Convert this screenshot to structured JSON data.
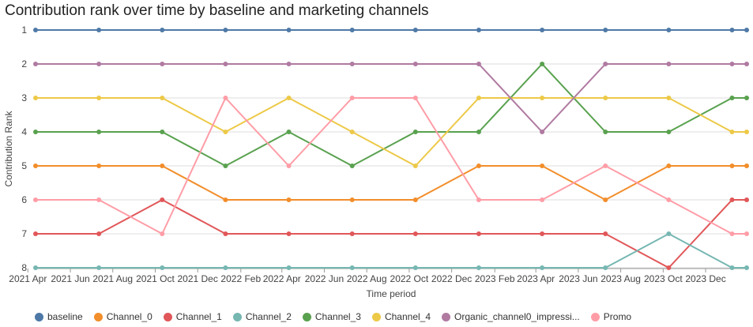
{
  "chart_data": {
    "type": "line",
    "title": "Contribution rank over time by baseline and marketing channels",
    "xlabel": "Time period",
    "ylabel": "Contribution Rank",
    "y_reversed": true,
    "ylim": [
      1,
      8
    ],
    "yticks": [
      "1",
      "2",
      "3",
      "4",
      "5",
      "6",
      "7",
      "8"
    ],
    "grid": true,
    "legend_position": "bottom",
    "xtick_labels": [
      "2021 Apr",
      "2021 Jun",
      "2021 Aug",
      "2021 Oct",
      "2021 Dec",
      "2022 Feb",
      "2022 Apr",
      "2022 Jun",
      "2022 Aug",
      "2022 Oct",
      "2022 Dec",
      "2023 Feb",
      "2023 Apr",
      "2023 Jun",
      "2023 Aug",
      "2023 Oct",
      "2023 Dec"
    ],
    "x": [
      "2021-04-12",
      "2021-07-12",
      "2021-10-11",
      "2022-01-10",
      "2022-04-11",
      "2022-07-11",
      "2022-10-10",
      "2023-01-09",
      "2023-04-10",
      "2023-07-10",
      "2023-10-09",
      "2024-01-08",
      "2024-01-29"
    ],
    "series": [
      {
        "name": "baseline",
        "color": "#4e79a7",
        "values": [
          1,
          1,
          1,
          1,
          1,
          1,
          1,
          1,
          1,
          1,
          1,
          1,
          1
        ]
      },
      {
        "name": "Channel_0",
        "color": "#f28e2b",
        "values": [
          5,
          5,
          5,
          6,
          6,
          6,
          6,
          5,
          5,
          6,
          5,
          5,
          5
        ]
      },
      {
        "name": "Channel_1",
        "color": "#e15759",
        "values": [
          7,
          7,
          6,
          7,
          7,
          7,
          7,
          7,
          7,
          7,
          8,
          6,
          6
        ]
      },
      {
        "name": "Channel_2",
        "color": "#76b7b2",
        "values": [
          8,
          8,
          8,
          8,
          8,
          8,
          8,
          8,
          8,
          8,
          7,
          8,
          8
        ]
      },
      {
        "name": "Channel_3",
        "color": "#59a14f",
        "values": [
          4,
          4,
          4,
          5,
          4,
          5,
          4,
          4,
          2,
          4,
          4,
          3,
          3
        ]
      },
      {
        "name": "Channel_4",
        "color": "#edc948",
        "values": [
          3,
          3,
          3,
          4,
          3,
          4,
          5,
          3,
          3,
          3,
          3,
          4,
          4
        ]
      },
      {
        "name": "Organic_channel0_impressi...",
        "color": "#b07aa1",
        "values": [
          2,
          2,
          2,
          2,
          2,
          2,
          2,
          2,
          4,
          2,
          2,
          2,
          2
        ]
      },
      {
        "name": "Promo",
        "color": "#ff9da7",
        "values": [
          6,
          6,
          7,
          3,
          5,
          3,
          3,
          6,
          6,
          5,
          6,
          7,
          7
        ]
      }
    ]
  }
}
